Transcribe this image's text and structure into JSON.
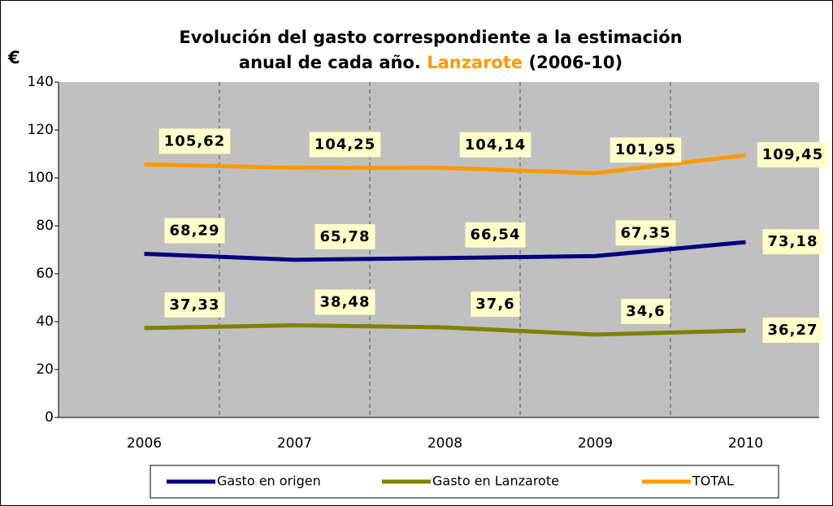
{
  "chart_data": {
    "type": "line",
    "title": {
      "line1": "Evolución del gasto correspondiente a la estimación",
      "line2": "anual de cada año.",
      "highlight": "Lanzarote",
      "suffix": "(2006-10)"
    },
    "y_label": "€",
    "categories": [
      "2006",
      "2007",
      "2008",
      "2009",
      "2010"
    ],
    "series": [
      {
        "name": "Gasto en origen",
        "color": "#000080",
        "values": [
          68.29,
          65.78,
          66.54,
          67.35,
          73.18
        ],
        "value_labels": [
          "68,29",
          "65,78",
          "66,54",
          "67,35",
          "73,18"
        ]
      },
      {
        "name": "Gasto en Lanzarote",
        "color": "#808000",
        "values": [
          37.33,
          38.48,
          37.6,
          34.6,
          36.27
        ],
        "value_labels": [
          "37,33",
          "38,48",
          "37,6",
          "34,6",
          "36,27"
        ]
      },
      {
        "name": "TOTAL",
        "color": "#ff9900",
        "values": [
          105.62,
          104.25,
          104.14,
          101.95,
          109.45
        ],
        "value_labels": [
          "105,62",
          "104,25",
          "104,14",
          "101,95",
          "109,45"
        ]
      }
    ],
    "ylim": [
      0,
      140
    ],
    "yticks": [
      0,
      20,
      40,
      60,
      80,
      100,
      120,
      140
    ],
    "grid": true,
    "legend": "bottom"
  }
}
